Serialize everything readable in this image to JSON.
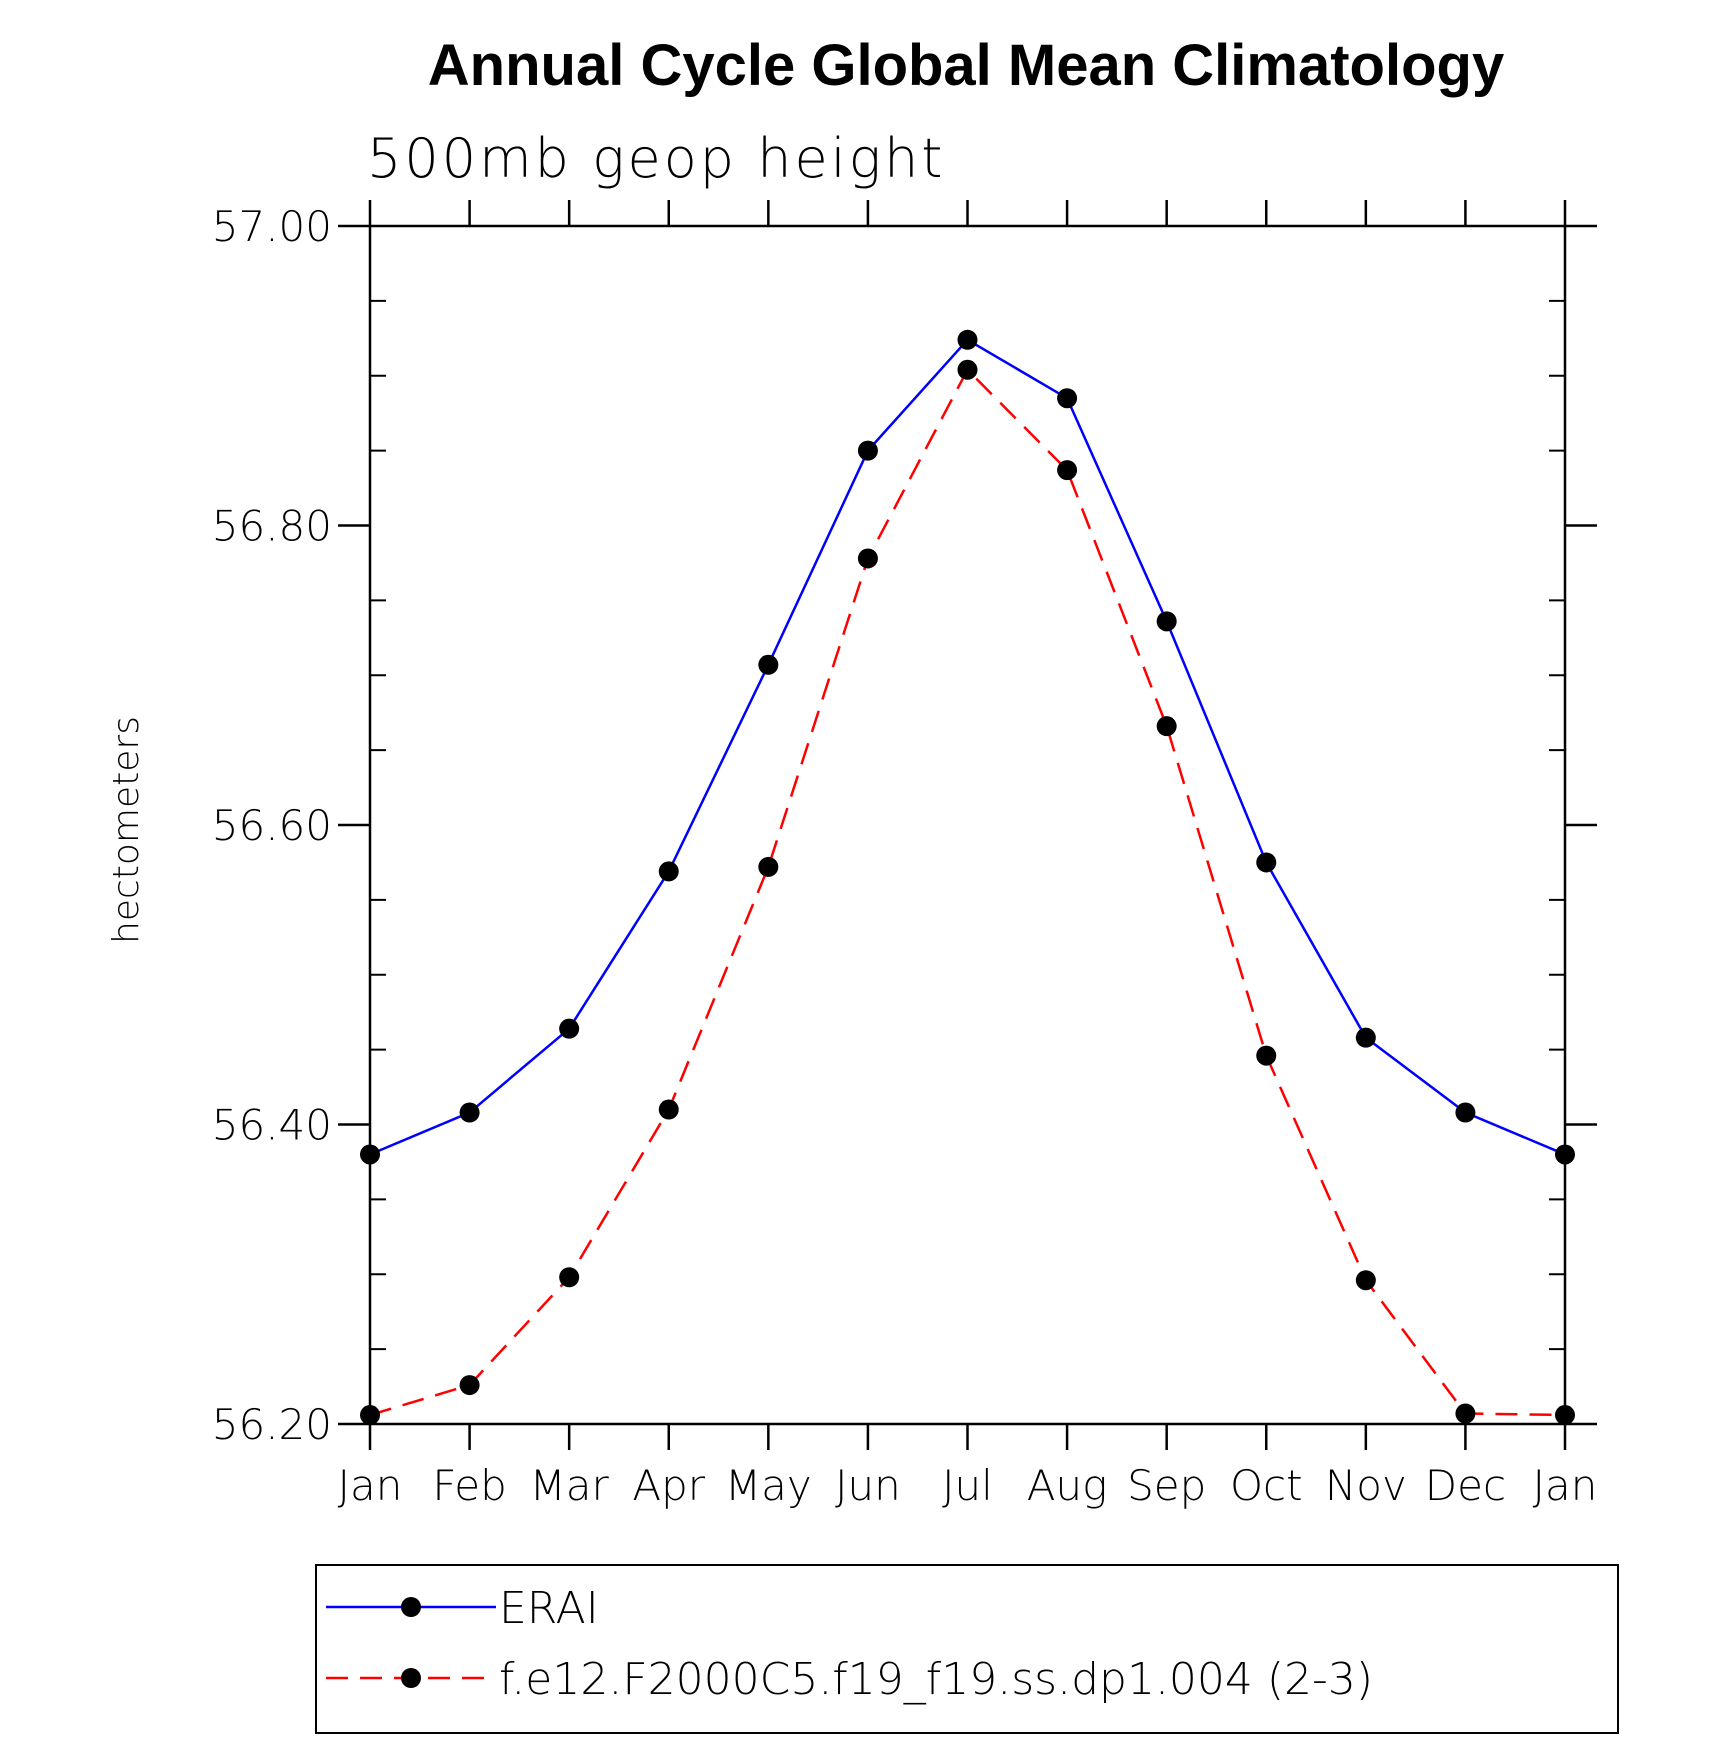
{
  "chart_data": {
    "type": "line",
    "title": "Annual Cycle Global Mean Climatology",
    "subtitle": "500mb geop height",
    "ylabel": "hectometers",
    "xlabel": "",
    "categories": [
      "Jan",
      "Feb",
      "Mar",
      "Apr",
      "May",
      "Jun",
      "Jul",
      "Aug",
      "Sep",
      "Oct",
      "Nov",
      "Dec",
      "Jan"
    ],
    "ylim": [
      56.2,
      57.0
    ],
    "yticks": [
      "56.20",
      "56.40",
      "56.60",
      "56.80",
      "57.00"
    ],
    "yminor_step": 0.05,
    "grid": false,
    "legend_position": "bottom",
    "series": [
      {
        "name": "ERAI",
        "color": "#0000ff",
        "dash": "solid",
        "marker": "filled-circle",
        "values": [
          56.38,
          56.408,
          56.464,
          56.569,
          56.707,
          56.85,
          56.924,
          56.885,
          56.736,
          56.575,
          56.458,
          56.408,
          56.38
        ]
      },
      {
        "name": "f.e12.F2000C5.f19_f19.ss.dp1.004 (2-3)",
        "color": "#ff0000",
        "dash": "dashed",
        "marker": "filled-circle",
        "values": [
          56.206,
          56.226,
          56.298,
          56.41,
          56.572,
          56.778,
          56.904,
          56.837,
          56.666,
          56.446,
          56.296,
          56.207,
          56.206
        ]
      }
    ]
  }
}
